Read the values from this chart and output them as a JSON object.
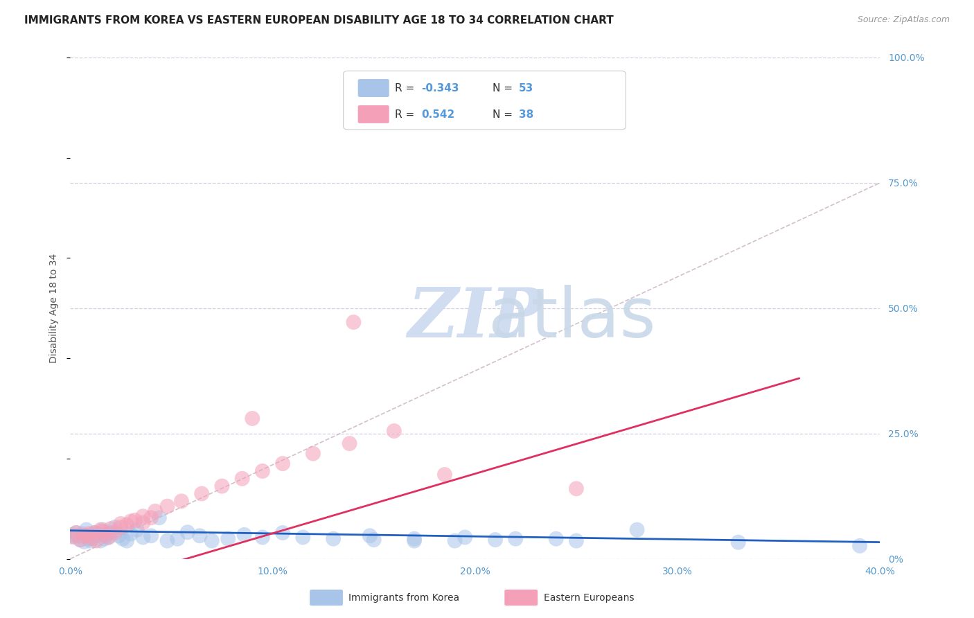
{
  "title": "IMMIGRANTS FROM KOREA VS EASTERN EUROPEAN DISABILITY AGE 18 TO 34 CORRELATION CHART",
  "source": "Source: ZipAtlas.com",
  "ylabel": "Disability Age 18 to 34",
  "xlim": [
    0.0,
    0.4
  ],
  "ylim": [
    0.0,
    1.0
  ],
  "xticks": [
    0.0,
    0.1,
    0.2,
    0.3,
    0.4
  ],
  "xtick_labels": [
    "0.0%",
    "10.0%",
    "20.0%",
    "30.0%",
    "40.0%"
  ],
  "yticks_right": [
    0.0,
    0.25,
    0.5,
    0.75,
    1.0
  ],
  "ytick_labels_right": [
    "0%",
    "25.0%",
    "50.0%",
    "75.0%",
    "100.0%"
  ],
  "korea_color": "#a8c4e8",
  "eastern_color": "#f4a0b8",
  "korea_line_color": "#2060c0",
  "eastern_line_color": "#e03060",
  "dash_line_color": "#c8b0c0",
  "background_color": "#ffffff",
  "grid_color": "#d0d0e0",
  "title_fontsize": 11,
  "watermark_color": "#d0dcf0",
  "legend_korea_label": "Immigrants from Korea",
  "legend_eastern_label": "Eastern Europeans",
  "korea_x": [
    0.001,
    0.002,
    0.003,
    0.004,
    0.005,
    0.006,
    0.007,
    0.008,
    0.009,
    0.01,
    0.011,
    0.012,
    0.013,
    0.014,
    0.015,
    0.016,
    0.017,
    0.018,
    0.019,
    0.02,
    0.022,
    0.024,
    0.026,
    0.028,
    0.03,
    0.033,
    0.036,
    0.04,
    0.044,
    0.048,
    0.053,
    0.058,
    0.064,
    0.07,
    0.078,
    0.086,
    0.095,
    0.105,
    0.115,
    0.13,
    0.148,
    0.17,
    0.195,
    0.22,
    0.25,
    0.15,
    0.17,
    0.19,
    0.21,
    0.24,
    0.28,
    0.33,
    0.39
  ],
  "korea_y": [
    0.048,
    0.044,
    0.052,
    0.046,
    0.038,
    0.05,
    0.034,
    0.058,
    0.04,
    0.036,
    0.042,
    0.052,
    0.046,
    0.05,
    0.036,
    0.058,
    0.04,
    0.048,
    0.043,
    0.052,
    0.063,
    0.046,
    0.04,
    0.036,
    0.05,
    0.058,
    0.043,
    0.046,
    0.082,
    0.036,
    0.04,
    0.053,
    0.046,
    0.036,
    0.04,
    0.048,
    0.043,
    0.052,
    0.043,
    0.04,
    0.046,
    0.036,
    0.043,
    0.04,
    0.036,
    0.038,
    0.04,
    0.036,
    0.038,
    0.04,
    0.058,
    0.033,
    0.026
  ],
  "eastern_x": [
    0.001,
    0.003,
    0.005,
    0.007,
    0.009,
    0.011,
    0.013,
    0.015,
    0.017,
    0.019,
    0.022,
    0.025,
    0.028,
    0.032,
    0.036,
    0.04,
    0.008,
    0.012,
    0.016,
    0.02,
    0.025,
    0.03,
    0.036,
    0.042,
    0.048,
    0.055,
    0.065,
    0.075,
    0.085,
    0.095,
    0.105,
    0.12,
    0.138,
    0.16,
    0.185,
    0.25,
    0.14,
    0.09
  ],
  "eastern_y": [
    0.044,
    0.052,
    0.038,
    0.046,
    0.05,
    0.04,
    0.036,
    0.058,
    0.048,
    0.043,
    0.052,
    0.063,
    0.068,
    0.077,
    0.072,
    0.082,
    0.046,
    0.052,
    0.055,
    0.06,
    0.07,
    0.075,
    0.085,
    0.095,
    0.105,
    0.115,
    0.13,
    0.145,
    0.16,
    0.175,
    0.19,
    0.21,
    0.23,
    0.255,
    0.168,
    0.14,
    0.472,
    0.28
  ]
}
